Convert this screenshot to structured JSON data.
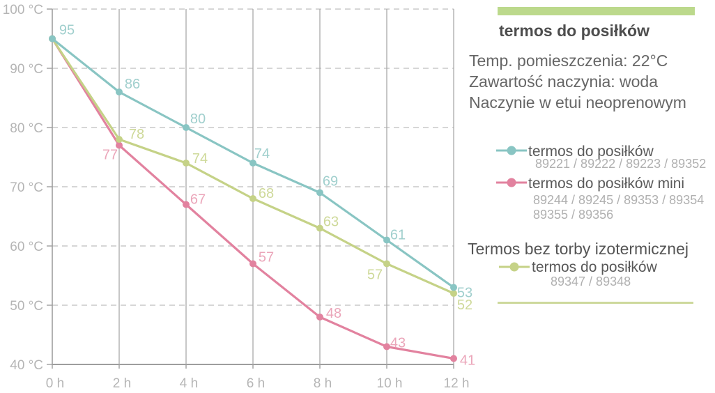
{
  "panel": {
    "title": "termos do posiłków",
    "info_lines": [
      "Temp. pomieszczenia: 22°C",
      "Zawartość naczynia: woda",
      "Naczynie w etui neoprenowym"
    ],
    "section2_title": "Termos bez torby izotermicznej",
    "accent_green": "#bcd98c",
    "rule_green": "#cdd99c"
  },
  "legend": [
    {
      "label": "termos do posiłków",
      "codes": [
        "89221 / 89222 / 89223 / 89352"
      ],
      "color": "#89c5c3"
    },
    {
      "label": "termos do posiłków mini",
      "codes": [
        "89244 / 89245 / 89353 / 89354",
        "89355 / 89356"
      ],
      "color": "#e2829f"
    },
    {
      "label": "termos do posiłków",
      "codes": [
        "89347 / 89348"
      ],
      "color": "#c5d287"
    }
  ],
  "chart_data": {
    "type": "line",
    "x": [
      0,
      2,
      4,
      6,
      8,
      10,
      12
    ],
    "x_tick_labels": [
      "0 h",
      "2 h",
      "4 h",
      "6 h",
      "8 h",
      "10 h",
      "12 h"
    ],
    "y_ticks": [
      100,
      90,
      80,
      70,
      60,
      50,
      40
    ],
    "y_tick_labels": [
      "100 °C",
      "90 °C",
      "80 °C",
      "70 °C",
      "60 °C",
      "50 °C",
      "40 °C"
    ],
    "ylim": [
      40,
      100
    ],
    "xlabel": "",
    "ylabel": "",
    "grid": true,
    "series": [
      {
        "name": "termos do posiłków",
        "values": [
          95,
          86,
          80,
          74,
          69,
          61,
          53
        ],
        "color": "#89c5c3",
        "label_color": "#a0cfcd"
      },
      {
        "name": "termos do posiłków mini",
        "values": [
          95,
          77,
          67,
          57,
          48,
          43,
          41
        ],
        "color": "#e2829f",
        "label_color": "#eba6ba"
      },
      {
        "name": "termos do posiłków (bez torby izotermicznej)",
        "values": [
          95,
          78,
          74,
          68,
          63,
          57,
          52
        ],
        "color": "#c5d287",
        "label_color": "#ced999"
      }
    ],
    "colors": {
      "axis": "#9e9e9e",
      "grid_dashed": "#c9c9c9",
      "grid_vertical": "#a9a9a9",
      "tick_text": "#b5b5b5"
    }
  }
}
